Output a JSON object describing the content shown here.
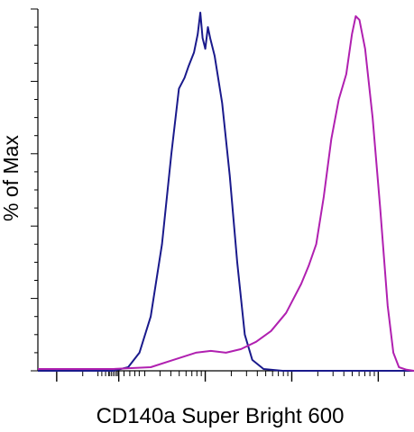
{
  "chart_data": {
    "type": "line",
    "title": "",
    "xlabel": "CD140a Super Bright 600",
    "ylabel": "% of Max",
    "x_scale": "log (biexponential)",
    "ylim": [
      0,
      100
    ],
    "grid": false,
    "legend": "none",
    "series": [
      {
        "color": "#1a1a8c",
        "points": [
          [
            0.0,
            0
          ],
          [
            0.2,
            0
          ],
          [
            0.24,
            1
          ],
          [
            0.27,
            5
          ],
          [
            0.3,
            15
          ],
          [
            0.33,
            35
          ],
          [
            0.355,
            60
          ],
          [
            0.375,
            78
          ],
          [
            0.39,
            81
          ],
          [
            0.4,
            84
          ],
          [
            0.415,
            88
          ],
          [
            0.425,
            93
          ],
          [
            0.432,
            99
          ],
          [
            0.438,
            92
          ],
          [
            0.445,
            89
          ],
          [
            0.452,
            95
          ],
          [
            0.458,
            92
          ],
          [
            0.47,
            87
          ],
          [
            0.49,
            74
          ],
          [
            0.51,
            54
          ],
          [
            0.53,
            30
          ],
          [
            0.55,
            10
          ],
          [
            0.57,
            3
          ],
          [
            0.6,
            0.5
          ],
          [
            0.65,
            0
          ],
          [
            1.0,
            0
          ]
        ]
      },
      {
        "color": "#b020b0",
        "points": [
          [
            0.0,
            0.5
          ],
          [
            0.2,
            0.5
          ],
          [
            0.3,
            1
          ],
          [
            0.36,
            3
          ],
          [
            0.42,
            5
          ],
          [
            0.46,
            5.5
          ],
          [
            0.5,
            5
          ],
          [
            0.54,
            6
          ],
          [
            0.58,
            8
          ],
          [
            0.62,
            11
          ],
          [
            0.66,
            16
          ],
          [
            0.7,
            24
          ],
          [
            0.72,
            29
          ],
          [
            0.74,
            35
          ],
          [
            0.76,
            48
          ],
          [
            0.78,
            64
          ],
          [
            0.8,
            75
          ],
          [
            0.82,
            82
          ],
          [
            0.835,
            93
          ],
          [
            0.845,
            98
          ],
          [
            0.855,
            97
          ],
          [
            0.87,
            89
          ],
          [
            0.89,
            70
          ],
          [
            0.91,
            45
          ],
          [
            0.93,
            18
          ],
          [
            0.945,
            5
          ],
          [
            0.96,
            1
          ],
          [
            0.98,
            0.3
          ],
          [
            1.0,
            0
          ]
        ]
      }
    ]
  }
}
